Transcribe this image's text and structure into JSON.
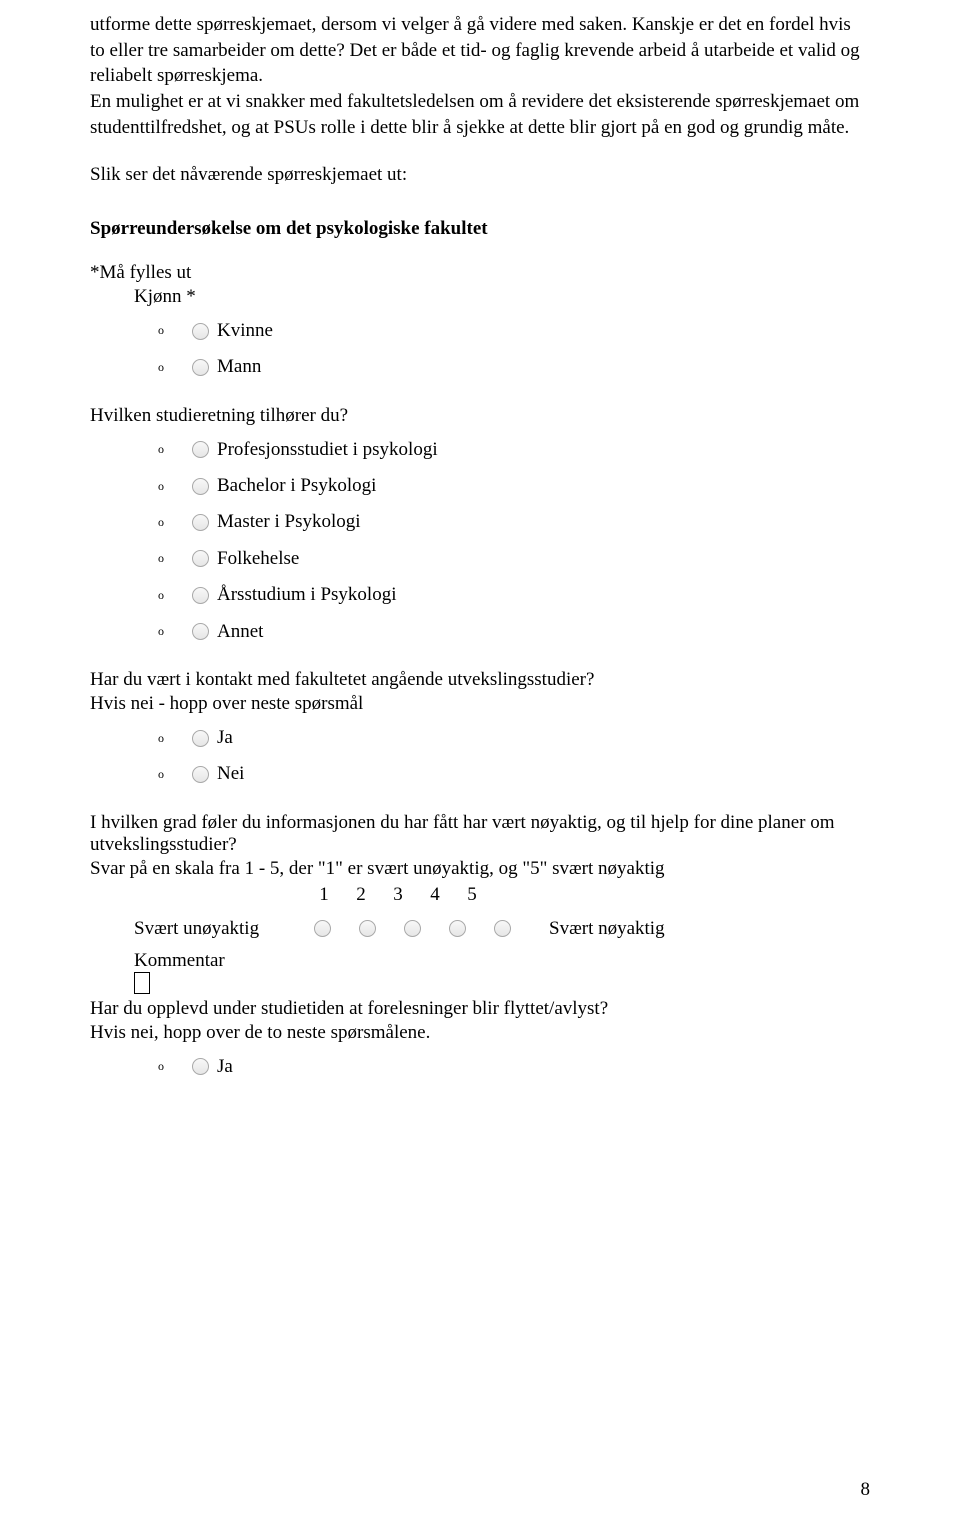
{
  "intro_paragraph": "utforme dette spørreskjemaet, dersom vi velger å gå videre med saken. Kanskje er det en fordel hvis to eller tre samarbeider om dette? Det er både et tid- og faglig krevende arbeid å utarbeide et valid og reliabelt spørreskjema.",
  "intro_paragraph2": "En mulighet er at vi snakker med fakultetsledelsen om å revidere det eksisterende spørreskjemaet om studenttilfredshet, og at PSUs rolle i dette blir å sjekke at dette blir gjort på en god og grundig måte.",
  "current_form_label": "Slik ser det nåværende spørreskjemaet ut:",
  "survey_title": "Spørreundersøkelse om det psykologiske fakultet",
  "required_label": "*Må fylles ut",
  "q_gender": "Kjønn *",
  "opt_female": "Kvinne",
  "opt_male": "Mann",
  "q_study": "Hvilken studieretning tilhører du?",
  "opt_prof": "Profesjonsstudiet i psykologi",
  "opt_bach": "Bachelor i Psykologi",
  "opt_master": "Master i Psykologi",
  "opt_folk": "Folkehelse",
  "opt_year": "Årsstudium i Psykologi",
  "opt_other": "Annet",
  "q_contact": "Har du vært i kontakt med fakultetet angående utvekslingsstudier?",
  "q_contact_sub": "Hvis nei - hopp over neste spørsmål",
  "opt_yes": "Ja",
  "opt_no": "Nei",
  "q_accuracy": "I hvilken grad føler du informasjonen du har fått har vært nøyaktig, og til hjelp for dine planer om utvekslingsstudier?",
  "q_accuracy_sub": "Svar på en skala fra 1 - 5, der \"1\" er svært unøyaktig, og \"5\" svært nøyaktig",
  "scale": {
    "labels": [
      "1",
      "2",
      "3",
      "4",
      "5"
    ],
    "left": "Svært unøyaktig",
    "right": "Svært nøyaktig"
  },
  "comment_label": "Kommentar",
  "q_lectures": "Har du opplevd under studietiden at forelesninger blir flyttet/avlyst?",
  "q_lectures_sub": "Hvis nei, hopp over de to neste spørsmålene.",
  "page_number": "8"
}
